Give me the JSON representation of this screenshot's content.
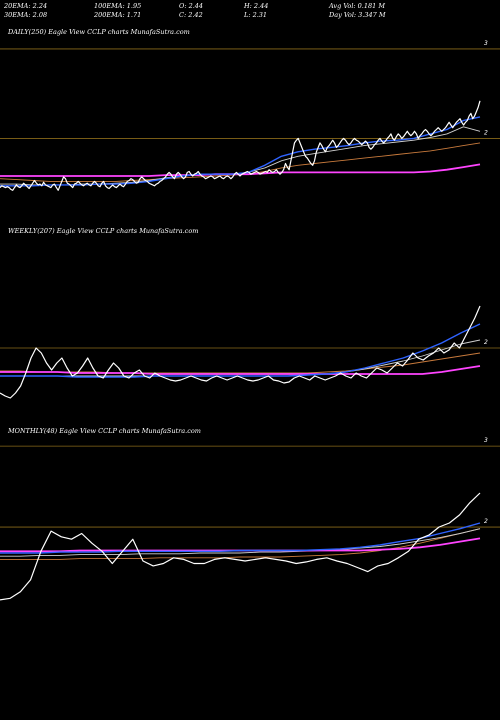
{
  "header": {
    "r1": [
      "20EMA: 2.24",
      "100EMA: 1.95",
      "O: 2.44",
      "H: 2.44",
      "Avg Vol: 0.181 M"
    ],
    "r2": [
      "30EMA: 2.08",
      "200EMA: 1.71",
      "C: 2.42",
      "L: 2.31",
      "Day Vol: 3.347 M"
    ]
  },
  "colors": {
    "price": "#ffffff",
    "ema20": "#2f63ff",
    "ema30": "#cfcfcf",
    "ema100": "#c87a3c",
    "ema200": "#ff44ff",
    "level": "#8a6a1a"
  },
  "chart_data": [
    {
      "type": "line",
      "label": "DAILY(250) Eagle  View  CCLP charts MunafaSutra.com",
      "ylim": [
        1.2,
        3.1
      ],
      "level_ticks": [
        "3",
        "2"
      ],
      "level_values": [
        3,
        2
      ],
      "series": [
        {
          "key": "price",
          "values": [
            1.45,
            1.47,
            1.46,
            1.45,
            1.46,
            1.45,
            1.43,
            1.42,
            1.45,
            1.48,
            1.46,
            1.45,
            1.47,
            1.5,
            1.48,
            1.46,
            1.44,
            1.47,
            1.5,
            1.53,
            1.5,
            1.48,
            1.49,
            1.47,
            1.51,
            1.48,
            1.47,
            1.46,
            1.45,
            1.48,
            1.49,
            1.45,
            1.42,
            1.47,
            1.52,
            1.57,
            1.55,
            1.5,
            1.49,
            1.47,
            1.45,
            1.49,
            1.5,
            1.52,
            1.5,
            1.48,
            1.47,
            1.49,
            1.5,
            1.48,
            1.47,
            1.5,
            1.52,
            1.5,
            1.47,
            1.46,
            1.5,
            1.52,
            1.47,
            1.45,
            1.44,
            1.46,
            1.48,
            1.46,
            1.45,
            1.47,
            1.49,
            1.47,
            1.46,
            1.49,
            1.52,
            1.53,
            1.55,
            1.54,
            1.52,
            1.5,
            1.51,
            1.55,
            1.57,
            1.55,
            1.53,
            1.52,
            1.5,
            1.49,
            1.48,
            1.47,
            1.49,
            1.5,
            1.52,
            1.53,
            1.55,
            1.57,
            1.6,
            1.62,
            1.6,
            1.57,
            1.55,
            1.6,
            1.62,
            1.6,
            1.57,
            1.55,
            1.57,
            1.62,
            1.63,
            1.6,
            1.58,
            1.6,
            1.61,
            1.63,
            1.6,
            1.58,
            1.57,
            1.55,
            1.56,
            1.57,
            1.58,
            1.57,
            1.55,
            1.56,
            1.57,
            1.58,
            1.56,
            1.55,
            1.57,
            1.58,
            1.57,
            1.55,
            1.57,
            1.6,
            1.62,
            1.6,
            1.58,
            1.6,
            1.61,
            1.62,
            1.63,
            1.62,
            1.6,
            1.61,
            1.62,
            1.63,
            1.62,
            1.6,
            1.61,
            1.62,
            1.63,
            1.62,
            1.65,
            1.63,
            1.62,
            1.63,
            1.65,
            1.62,
            1.6,
            1.62,
            1.65,
            1.72,
            1.68,
            1.65,
            1.75,
            1.85,
            1.95,
            1.98,
            2.0,
            1.95,
            1.9,
            1.85,
            1.8,
            1.78,
            1.75,
            1.72,
            1.7,
            1.75,
            1.85,
            1.9,
            1.95,
            1.92,
            1.88,
            1.85,
            1.9,
            1.92,
            1.95,
            1.98,
            1.95,
            1.9,
            1.92,
            1.95,
            1.98,
            2.0,
            1.98,
            1.95,
            1.93,
            1.95,
            1.98,
            2.0,
            1.98,
            1.97,
            1.95,
            1.93,
            1.95,
            1.97,
            1.95,
            1.9,
            1.88,
            1.9,
            1.93,
            1.95,
            1.98,
            2.0,
            1.97,
            1.95,
            1.97,
            2.0,
            2.02,
            2.05,
            2.0,
            1.98,
            2.02,
            2.05,
            2.03,
            2.0,
            2.02,
            2.05,
            2.08,
            2.05,
            2.03,
            2.05,
            2.08,
            2.05,
            2.0,
            2.03,
            2.05,
            2.08,
            2.1,
            2.08,
            2.05,
            2.03,
            2.05,
            2.08,
            2.1,
            2.12,
            2.1,
            2.08,
            2.1,
            2.12,
            2.15,
            2.18,
            2.15,
            2.12,
            2.15,
            2.18,
            2.2,
            2.22,
            2.18,
            2.15,
            2.18,
            2.2,
            2.25,
            2.28,
            2.22,
            2.25,
            2.3,
            2.35,
            2.42
          ]
        },
        {
          "key": "ema20",
          "values": [
            1.47,
            1.47,
            1.47,
            1.48,
            1.48,
            1.48,
            1.49,
            1.49,
            1.5,
            1.52,
            1.55,
            1.58,
            1.6,
            1.6,
            1.6,
            1.62,
            1.7,
            1.8,
            1.85,
            1.88,
            1.9,
            1.92,
            1.95,
            1.97,
            1.98,
            2.0,
            2.05,
            2.1,
            2.2,
            2.24
          ]
        },
        {
          "key": "ema30",
          "values": [
            1.49,
            1.49,
            1.48,
            1.48,
            1.48,
            1.49,
            1.49,
            1.5,
            1.51,
            1.53,
            1.56,
            1.58,
            1.59,
            1.6,
            1.6,
            1.62,
            1.67,
            1.75,
            1.8,
            1.83,
            1.86,
            1.89,
            1.92,
            1.94,
            1.96,
            1.98,
            2.01,
            2.05,
            2.13,
            2.08
          ]
        },
        {
          "key": "ema100",
          "values": [
            1.55,
            1.54,
            1.53,
            1.52,
            1.52,
            1.52,
            1.52,
            1.52,
            1.53,
            1.54,
            1.55,
            1.56,
            1.57,
            1.58,
            1.59,
            1.6,
            1.63,
            1.67,
            1.7,
            1.72,
            1.74,
            1.76,
            1.78,
            1.8,
            1.82,
            1.84,
            1.86,
            1.89,
            1.92,
            1.95
          ]
        },
        {
          "key": "ema200",
          "values": [
            1.58,
            1.58,
            1.58,
            1.58,
            1.58,
            1.58,
            1.58,
            1.58,
            1.58,
            1.58,
            1.59,
            1.59,
            1.59,
            1.6,
            1.6,
            1.6,
            1.61,
            1.62,
            1.62,
            1.62,
            1.62,
            1.62,
            1.62,
            1.62,
            1.62,
            1.62,
            1.63,
            1.65,
            1.68,
            1.71
          ]
        }
      ]
    },
    {
      "type": "line",
      "label": "WEEKLY(207) Eagle  View  CCLP charts MunafaSutra.com",
      "ylim": [
        1.4,
        3.1
      ],
      "level_ticks": [
        "2"
      ],
      "level_values": [
        2
      ],
      "series": [
        {
          "key": "price",
          "values": [
            1.55,
            1.52,
            1.5,
            1.55,
            1.62,
            1.75,
            1.9,
            2.0,
            1.95,
            1.85,
            1.78,
            1.85,
            1.9,
            1.8,
            1.72,
            1.75,
            1.82,
            1.9,
            1.8,
            1.72,
            1.7,
            1.78,
            1.85,
            1.8,
            1.72,
            1.7,
            1.75,
            1.78,
            1.72,
            1.7,
            1.75,
            1.72,
            1.7,
            1.68,
            1.67,
            1.68,
            1.7,
            1.72,
            1.7,
            1.68,
            1.67,
            1.7,
            1.72,
            1.7,
            1.68,
            1.7,
            1.72,
            1.7,
            1.68,
            1.67,
            1.68,
            1.7,
            1.72,
            1.68,
            1.67,
            1.65,
            1.66,
            1.7,
            1.72,
            1.7,
            1.68,
            1.72,
            1.7,
            1.68,
            1.7,
            1.72,
            1.75,
            1.72,
            1.7,
            1.75,
            1.72,
            1.7,
            1.75,
            1.8,
            1.78,
            1.75,
            1.8,
            1.85,
            1.82,
            1.88,
            1.95,
            1.9,
            1.88,
            1.92,
            1.95,
            2.0,
            1.95,
            1.98,
            2.05,
            2.0,
            2.1,
            2.2,
            2.3,
            2.42
          ]
        },
        {
          "key": "ema20",
          "values": [
            1.72,
            1.72,
            1.72,
            1.72,
            1.71,
            1.71,
            1.71,
            1.71,
            1.72,
            1.72,
            1.72,
            1.72,
            1.72,
            1.72,
            1.72,
            1.72,
            1.73,
            1.74,
            1.76,
            1.8,
            1.85,
            1.9,
            1.97,
            2.05,
            2.15,
            2.24
          ]
        },
        {
          "key": "ema30",
          "values": [
            1.72,
            1.72,
            1.72,
            1.72,
            1.72,
            1.72,
            1.72,
            1.72,
            1.72,
            1.72,
            1.72,
            1.72,
            1.72,
            1.72,
            1.72,
            1.72,
            1.73,
            1.74,
            1.76,
            1.79,
            1.83,
            1.87,
            1.92,
            1.98,
            2.04,
            2.08
          ]
        },
        {
          "key": "ema100",
          "values": [
            1.77,
            1.77,
            1.76,
            1.76,
            1.76,
            1.76,
            1.75,
            1.75,
            1.75,
            1.75,
            1.75,
            1.75,
            1.75,
            1.75,
            1.75,
            1.75,
            1.75,
            1.76,
            1.77,
            1.79,
            1.81,
            1.83,
            1.86,
            1.89,
            1.92,
            1.95
          ]
        },
        {
          "key": "ema200",
          "values": [
            1.76,
            1.76,
            1.76,
            1.76,
            1.75,
            1.75,
            1.75,
            1.75,
            1.74,
            1.74,
            1.74,
            1.74,
            1.74,
            1.74,
            1.74,
            1.74,
            1.74,
            1.74,
            1.74,
            1.74,
            1.74,
            1.74,
            1.74,
            1.76,
            1.79,
            1.82
          ]
        }
      ]
    },
    {
      "type": "line",
      "label": "MONTHLY(48) Eagle  View  CCLP charts MunafaSutra.com",
      "ylim": [
        1.0,
        3.1
      ],
      "level_ticks": [
        "3",
        "2"
      ],
      "level_values": [
        3,
        2
      ],
      "series": [
        {
          "key": "price",
          "values": [
            1.1,
            1.12,
            1.2,
            1.35,
            1.7,
            1.95,
            1.88,
            1.85,
            1.92,
            1.8,
            1.7,
            1.55,
            1.7,
            1.85,
            1.58,
            1.52,
            1.55,
            1.62,
            1.6,
            1.55,
            1.55,
            1.6,
            1.62,
            1.6,
            1.58,
            1.6,
            1.62,
            1.6,
            1.58,
            1.55,
            1.57,
            1.6,
            1.62,
            1.58,
            1.55,
            1.5,
            1.45,
            1.52,
            1.55,
            1.62,
            1.7,
            1.85,
            1.9,
            2.0,
            2.05,
            2.15,
            2.3,
            2.42
          ]
        },
        {
          "key": "ema20",
          "values": [
            1.68,
            1.68,
            1.68,
            1.69,
            1.69,
            1.69,
            1.7,
            1.7,
            1.7,
            1.7,
            1.7,
            1.7,
            1.71,
            1.71,
            1.71,
            1.71,
            1.72,
            1.73,
            1.75,
            1.78,
            1.82,
            1.86,
            1.92,
            1.98,
            2.05
          ]
        },
        {
          "key": "ema30",
          "values": [
            1.64,
            1.64,
            1.65,
            1.65,
            1.66,
            1.66,
            1.66,
            1.67,
            1.67,
            1.67,
            1.68,
            1.68,
            1.68,
            1.69,
            1.69,
            1.7,
            1.71,
            1.72,
            1.74,
            1.76,
            1.79,
            1.83,
            1.87,
            1.92,
            1.98
          ]
        },
        {
          "key": "ema100",
          "values": [
            1.6,
            1.6,
            1.6,
            1.6,
            1.61,
            1.61,
            1.61,
            1.61,
            1.62,
            1.62,
            1.62,
            1.62,
            1.63,
            1.63,
            1.63,
            1.64,
            1.65,
            1.66,
            1.68,
            1.71,
            1.75,
            1.8,
            1.86,
            1.92,
            1.98
          ]
        },
        {
          "key": "ema200",
          "values": [
            1.7,
            1.7,
            1.7,
            1.7,
            1.71,
            1.71,
            1.71,
            1.71,
            1.71,
            1.71,
            1.71,
            1.71,
            1.71,
            1.71,
            1.71,
            1.71,
            1.71,
            1.71,
            1.71,
            1.72,
            1.73,
            1.75,
            1.78,
            1.82,
            1.86
          ]
        }
      ]
    }
  ]
}
